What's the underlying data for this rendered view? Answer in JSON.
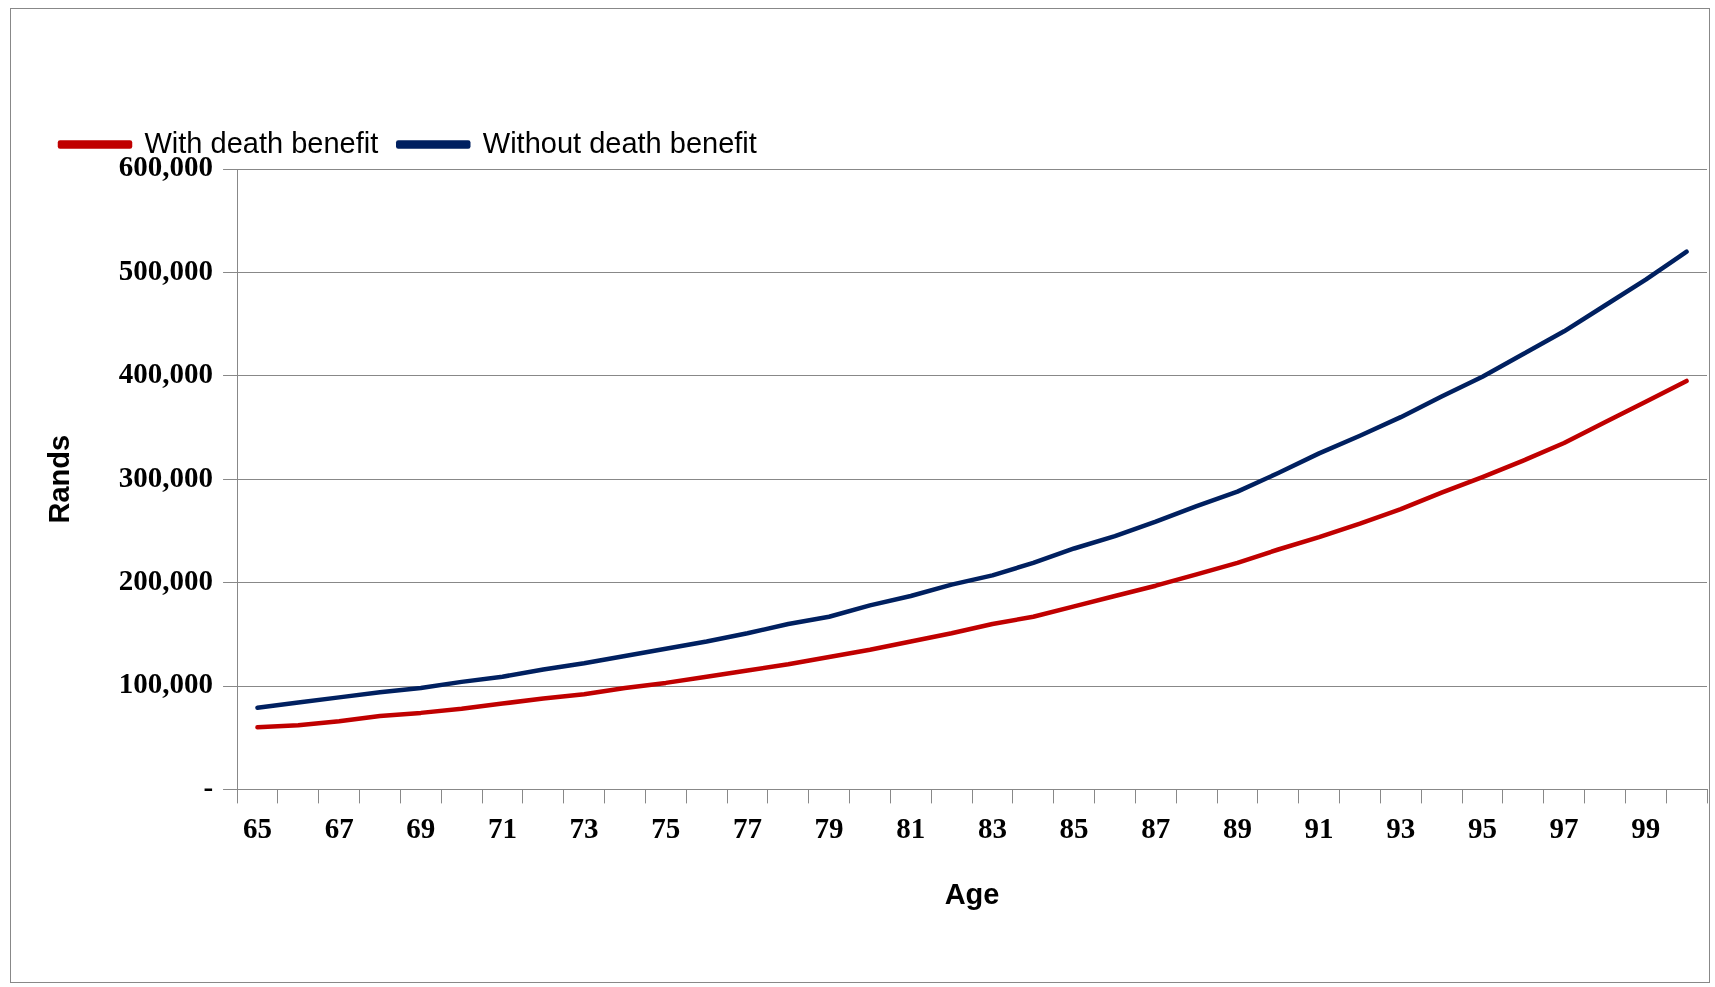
{
  "chart_data": {
    "type": "line",
    "xlabel": "Age",
    "ylabel": "Rands",
    "categories": [
      "65",
      null,
      "67",
      null,
      "69",
      null,
      "71",
      null,
      "73",
      null,
      "75",
      null,
      "77",
      null,
      "79",
      null,
      "81",
      null,
      "83",
      null,
      "85",
      null,
      "87",
      null,
      "89",
      null,
      "91",
      null,
      "93",
      null,
      "95",
      null,
      "97",
      null,
      "99",
      null
    ],
    "series": [
      {
        "name": "With death benefit",
        "color": "#c00000",
        "values": [
          60000,
          62000,
          66000,
          71000,
          74000,
          78000,
          83000,
          88000,
          92000,
          98000,
          103000,
          109000,
          115000,
          121000,
          128000,
          135000,
          143000,
          151000,
          160000,
          167000,
          177000,
          187000,
          197000,
          208000,
          219000,
          232000,
          244000,
          257000,
          271000,
          287000,
          302000,
          318000,
          335000,
          355000,
          375000,
          395000
        ]
      },
      {
        "name": "Without death benefit",
        "color": "#002060",
        "values": [
          79000,
          84000,
          89000,
          94000,
          98000,
          104000,
          109000,
          116000,
          122000,
          129000,
          136000,
          143000,
          151000,
          160000,
          167000,
          178000,
          187000,
          198000,
          207000,
          219000,
          233000,
          245000,
          259000,
          274000,
          288000,
          306000,
          325000,
          342000,
          360000,
          380000,
          399000,
          421000,
          443000,
          468000,
          493000,
          520000
        ]
      }
    ],
    "ylim": [
      0,
      600000
    ],
    "yticks": [
      {
        "value": 0,
        "label": "-"
      },
      {
        "value": 100000,
        "label": "100,000"
      },
      {
        "value": 200000,
        "label": "200,000"
      },
      {
        "value": 300000,
        "label": "300,000"
      },
      {
        "value": 400000,
        "label": "400,000"
      },
      {
        "value": 500000,
        "label": "500,000"
      },
      {
        "value": 600000,
        "label": "600,000"
      }
    ],
    "grid": "y",
    "legend": "top left",
    "marker": "none",
    "line_style": "solid"
  }
}
